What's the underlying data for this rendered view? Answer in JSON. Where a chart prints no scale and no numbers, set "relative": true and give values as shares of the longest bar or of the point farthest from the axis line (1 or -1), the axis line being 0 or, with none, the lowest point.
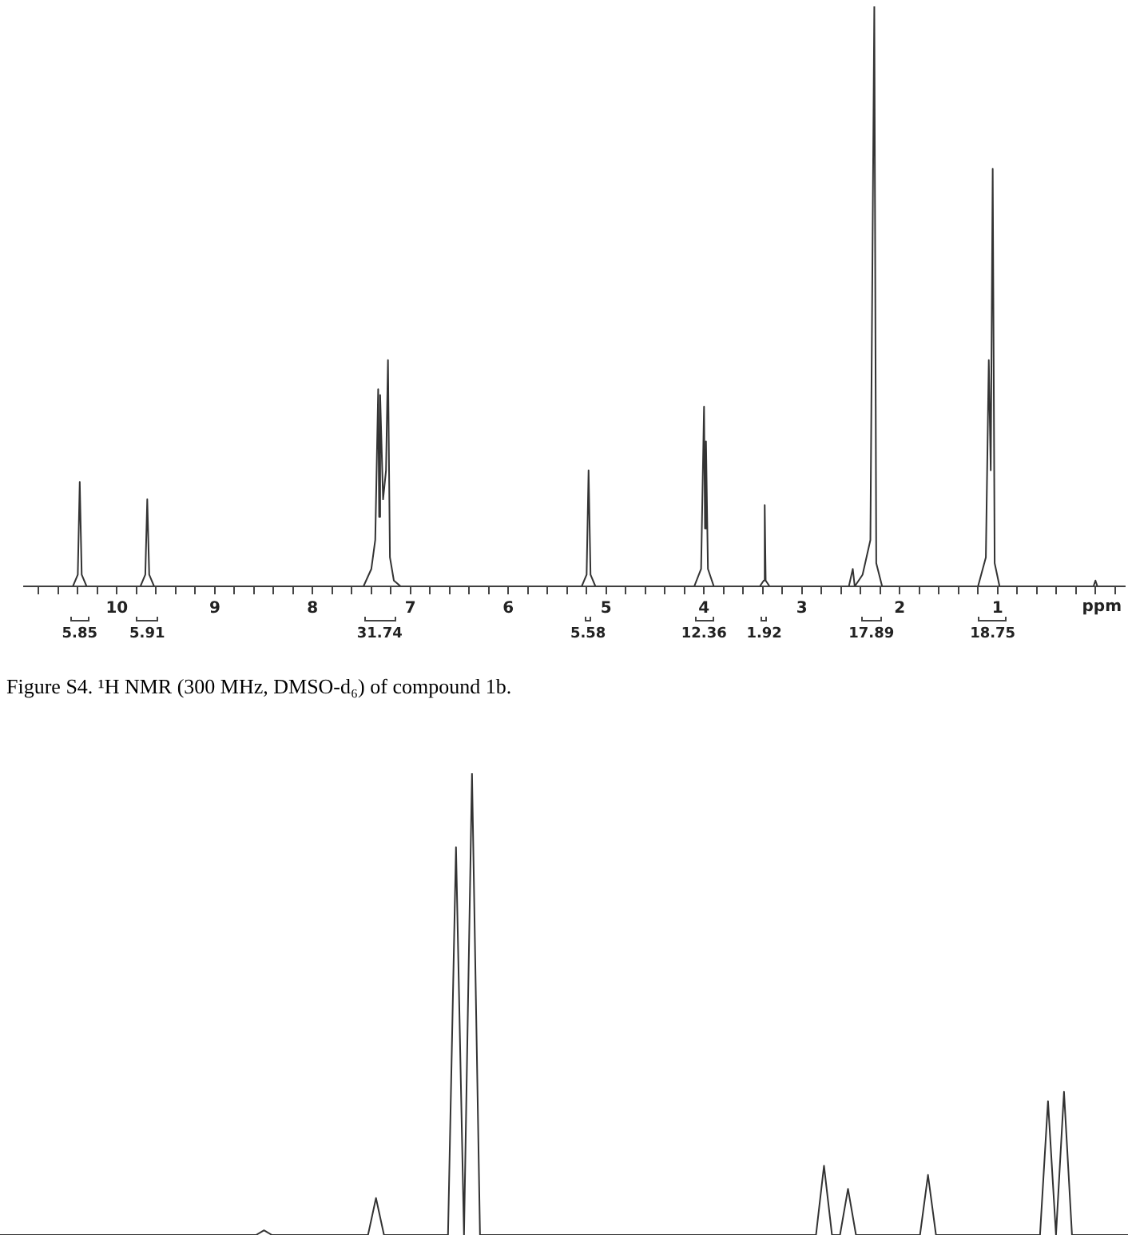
{
  "chart_data": [
    {
      "type": "line",
      "relative": true,
      "xlabel": "ppm",
      "marker": "none",
      "xlim": [
        10.95,
        -0.3
      ],
      "xticks": [
        {
          "value": 10.8,
          "label": null
        },
        {
          "value": 10.6,
          "label": null
        },
        {
          "value": 10.4,
          "label": null
        },
        {
          "value": 10.2,
          "label": null
        },
        10,
        {
          "value": 9.8,
          "label": null
        },
        {
          "value": 9.6,
          "label": null
        },
        {
          "value": 9.4,
          "label": null
        },
        {
          "value": 9.2,
          "label": null
        },
        9,
        {
          "value": 8.8,
          "label": null
        },
        {
          "value": 8.6,
          "label": null
        },
        {
          "value": 8.4,
          "label": null
        },
        {
          "value": 8.2,
          "label": null
        },
        8,
        {
          "value": 7.8,
          "label": null
        },
        {
          "value": 7.6,
          "label": null
        },
        {
          "value": 7.4,
          "label": null
        },
        {
          "value": 7.2,
          "label": null
        },
        7,
        {
          "value": 6.8,
          "label": null
        },
        {
          "value": 6.6,
          "label": null
        },
        {
          "value": 6.4,
          "label": null
        },
        {
          "value": 6.2,
          "label": null
        },
        6,
        {
          "value": 5.8,
          "label": null
        },
        {
          "value": 5.6,
          "label": null
        },
        {
          "value": 5.4,
          "label": null
        },
        {
          "value": 5.2,
          "label": null
        },
        5,
        {
          "value": 4.8,
          "label": null
        },
        {
          "value": 4.6,
          "label": null
        },
        {
          "value": 4.4,
          "label": null
        },
        {
          "value": 4.2,
          "label": null
        },
        4,
        {
          "value": 3.8,
          "label": null
        },
        {
          "value": 3.6,
          "label": null
        },
        {
          "value": 3.4,
          "label": null
        },
        {
          "value": 3.2,
          "label": null
        },
        3,
        {
          "value": 2.8,
          "label": null
        },
        {
          "value": 2.6,
          "label": null
        },
        {
          "value": 2.4,
          "label": null
        },
        {
          "value": 2.2,
          "label": null
        },
        2,
        {
          "value": 1.8,
          "label": null
        },
        {
          "value": 1.6,
          "label": null
        },
        {
          "value": 1.4,
          "label": null
        },
        {
          "value": 1.2,
          "label": null
        },
        1,
        {
          "value": 0.8,
          "label": null
        },
        {
          "value": 0.6,
          "label": null
        },
        {
          "value": 0.4,
          "label": null
        },
        {
          "value": 0.2,
          "label": null
        },
        {
          "value": 0,
          "label": null
        },
        {
          "value": -0.2,
          "label": null
        }
      ],
      "series": [
        {
          "color": "#333333",
          "x": [
            10.95,
            10.45,
            10.4,
            10.38,
            10.36,
            10.31,
            9.76,
            9.71,
            9.69,
            9.67,
            9.62,
            7.48,
            7.4,
            7.36,
            7.33,
            7.32,
            7.31,
            7.28,
            7.25,
            7.23,
            7.21,
            7.17,
            7.1,
            5.25,
            5.2,
            5.18,
            5.16,
            5.11,
            4.1,
            4.03,
            4.0,
            3.99,
            3.98,
            3.96,
            3.9,
            3.43,
            3.39,
            3.38,
            3.37,
            3.33,
            2.52,
            2.48,
            2.46,
            2.38,
            2.3,
            2.26,
            2.24,
            2.18,
            1.2,
            1.12,
            1.09,
            1.07,
            1.05,
            1.03,
            0.98,
            0.02,
            0,
            -0.02,
            -0.3
          ],
          "values": [
            0,
            0,
            0.02,
            0.18,
            0.02,
            0,
            0,
            0.02,
            0.15,
            0.02,
            0,
            0,
            0.03,
            0.08,
            0.34,
            0.12,
            0.33,
            0.15,
            0.2,
            0.39,
            0.05,
            0.01,
            0,
            0,
            0.02,
            0.2,
            0.02,
            0,
            0,
            0.03,
            0.31,
            0.1,
            0.25,
            0.03,
            0,
            0,
            0.01,
            0.14,
            0.01,
            0,
            0,
            0.03,
            0,
            0.02,
            0.08,
            1,
            0.04,
            0,
            0,
            0.05,
            0.39,
            0.2,
            0.72,
            0.04,
            0,
            0,
            0.01,
            0,
            0
          ]
        }
      ],
      "annotations": [
        "5.85",
        "5.91",
        "31.74",
        "5.58",
        "12.36",
        "1.92",
        "17.89",
        "18.75",
        "Figure S4. ¹H NMR (300 MHz, DMSO-d₆) of compound 1b."
      ]
    },
    {
      "type": "line",
      "relative": true,
      "marker": "none",
      "categories": [
        null,
        null,
        null,
        null,
        null,
        null,
        null,
        null,
        null,
        null,
        null,
        null,
        null,
        null,
        null,
        null,
        null,
        null,
        null,
        null,
        null,
        null,
        null,
        null,
        null,
        null,
        null,
        null,
        null,
        null,
        null,
        null,
        null,
        null,
        null,
        null,
        null,
        null,
        null,
        null,
        null,
        null,
        null,
        null,
        null,
        null,
        null,
        null,
        null,
        null,
        null,
        null,
        null,
        null,
        null,
        null,
        null,
        null,
        null,
        null,
        null,
        null,
        null,
        null,
        null,
        null,
        null,
        null,
        null,
        null,
        null,
        null,
        null,
        null,
        null,
        null,
        null,
        null,
        null,
        null,
        null,
        null,
        null,
        null,
        null,
        null,
        null,
        null,
        null,
        null,
        null,
        null,
        null,
        null,
        null,
        null,
        null,
        null,
        null,
        null,
        null,
        null,
        null,
        null,
        null,
        null,
        null,
        null,
        null,
        null,
        null,
        null,
        null,
        null,
        null,
        null,
        null,
        null,
        null,
        null,
        null,
        null,
        null,
        null,
        null,
        null,
        null,
        null,
        null,
        null,
        null,
        null,
        null,
        null,
        null,
        null,
        null,
        null,
        null,
        null,
        null,
        null
      ],
      "series": [
        {
          "color": "#333333",
          "values": [
            0,
            0,
            0,
            0,
            0,
            0,
            0,
            0,
            0,
            0,
            0,
            0,
            0,
            0,
            0,
            0,
            0,
            0,
            0,
            0,
            0,
            0,
            0,
            0,
            0,
            0,
            0,
            0,
            0,
            0,
            0,
            0,
            0,
            0.01,
            0,
            0,
            0,
            0,
            0,
            0,
            0,
            0,
            0,
            0,
            0,
            0,
            0,
            0.08,
            0,
            0,
            0,
            0,
            0,
            0,
            0,
            0,
            0,
            0.84,
            0,
            1,
            0,
            0,
            0,
            0,
            0,
            0,
            0,
            0,
            0,
            0,
            0,
            0,
            0,
            0,
            0,
            0,
            0,
            0,
            0,
            0,
            0,
            0,
            0,
            0,
            0,
            0,
            0,
            0,
            0,
            0,
            0,
            0,
            0,
            0,
            0,
            0,
            0,
            0,
            0,
            0,
            0,
            0,
            0,
            0.15,
            0,
            0,
            0.1,
            0,
            0,
            0,
            0,
            0,
            0,
            0,
            0,
            0,
            0.13,
            0,
            0,
            0,
            0,
            0,
            0,
            0,
            0,
            0,
            0,
            0,
            0,
            0,
            0,
            0.29,
            0,
            0.31,
            0,
            0,
            0,
            0,
            0,
            0,
            0,
            0
          ]
        }
      ]
    }
  ]
}
